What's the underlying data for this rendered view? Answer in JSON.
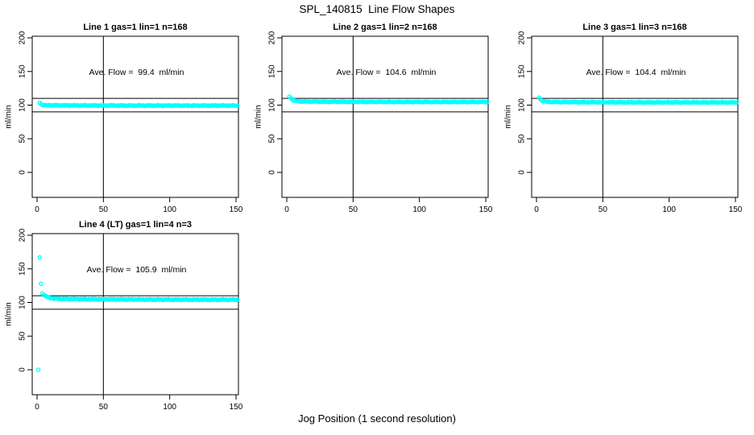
{
  "figure": {
    "title": "SPL_140815  Line Flow Shapes",
    "xlabel": "Jog Position (1 second resolution)"
  },
  "colors": {
    "points": "#00FFFF",
    "axis": "#000000",
    "background": "#FFFFFF",
    "text": "#000000"
  },
  "chart_data": {
    "type": "scatter",
    "title": "SPL_140815  Line Flow Shapes",
    "xlabel": "Jog Position (1 second resolution)",
    "ylabel": "ml/min",
    "x_ticks": [
      0,
      50,
      100,
      150
    ],
    "y_ticks": [
      0,
      50,
      100,
      150,
      200
    ],
    "xlim": [
      -3.6,
      151.8
    ],
    "ylim": [
      -37,
      202
    ],
    "grid": false,
    "marker": "open-circle",
    "reference_lines_y": [
      110,
      90
    ],
    "reference_line_x": 50,
    "annotation_anchor": {
      "x": 75,
      "y": 145
    },
    "panels": [
      {
        "title": "Line 1 gas=1 lin=1 n=168",
        "annotation": "Ave. Flow =  99.4  ml/min",
        "ave_flow_ml_min": 99.4,
        "n": 168,
        "gas": 1,
        "lin": 1,
        "outliers": [],
        "series": {
          "x_start": 2,
          "x_end": 151,
          "step": 1,
          "settle": 99.3,
          "bump": 4.0,
          "tau": 1.0,
          "drift": 0.6,
          "drift_tau": 30,
          "noise": 0.7
        }
      },
      {
        "title": "Line 2 gas=1 lin=2 n=168",
        "annotation": "Ave. Flow =  104.6  ml/min",
        "ave_flow_ml_min": 104.6,
        "n": 168,
        "gas": 1,
        "lin": 2,
        "outliers": [],
        "series": {
          "x_start": 2,
          "x_end": 151,
          "step": 1,
          "settle": 104.7,
          "bump": 7.5,
          "tau": 2.2,
          "drift": 0.8,
          "drift_tau": 35,
          "noise": 0.7
        }
      },
      {
        "title": "Line 3 gas=1 lin=3 n=168",
        "annotation": "Ave. Flow =  104.4  ml/min",
        "ave_flow_ml_min": 104.4,
        "n": 168,
        "gas": 1,
        "lin": 3,
        "outliers": [],
        "series": {
          "x_start": 2,
          "x_end": 151,
          "step": 1,
          "settle": 104.1,
          "bump": 6.5,
          "tau": 1.8,
          "drift": 0.8,
          "drift_tau": 35,
          "noise": 0.7
        }
      },
      {
        "title": "Line 4 (LT) gas=1 lin=4 n=3",
        "annotation": "Ave. Flow =  105.9  ml/min",
        "ave_flow_ml_min": 105.9,
        "n": 3,
        "gas": 1,
        "lin": 4,
        "outliers": [
          [
            1,
            0
          ],
          [
            2,
            167
          ],
          [
            3,
            128
          ]
        ],
        "series": {
          "x_start": 4,
          "x_end": 151,
          "step": 1,
          "settle": 104.0,
          "bump": 8.0,
          "tau": 3.2,
          "drift": 1.8,
          "drift_tau": 50,
          "noise": 0.8
        }
      }
    ]
  }
}
